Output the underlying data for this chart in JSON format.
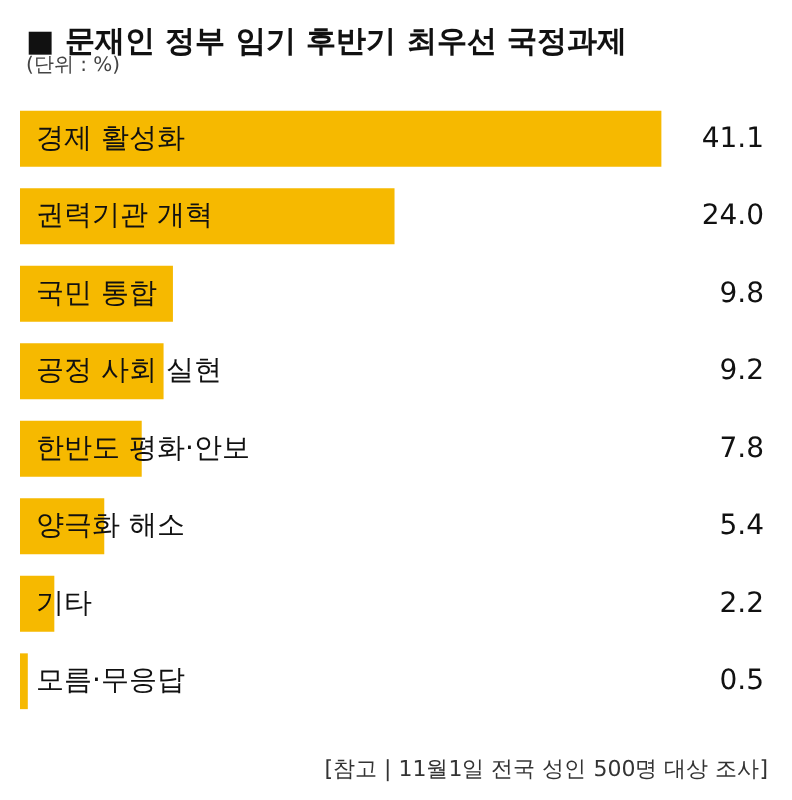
{
  "chart_data": {
    "type": "bar",
    "orientation": "horizontal",
    "title": "■ 문재인 정부 임기 후반기 최우선 국정과제",
    "subtitle": "(단위 : %)",
    "categories": [
      "경제 활성화",
      "권력기관 개혁",
      "국민 통합",
      "공정 사회 실현",
      "한반도 평화·안보",
      "양극화 해소",
      "기타",
      "모름·무응답"
    ],
    "values": [
      41.1,
      24.0,
      9.8,
      9.2,
      7.8,
      5.4,
      2.2,
      0.5
    ],
    "value_labels": [
      "41.1",
      "24.0",
      "9.8",
      "9.2",
      "7.8",
      "5.4",
      "2.2",
      "0.5"
    ],
    "color": "#f6b900",
    "annotations": [
      "[참고 | 11월1일 전국 성인 500명 대상 조사]"
    ]
  }
}
